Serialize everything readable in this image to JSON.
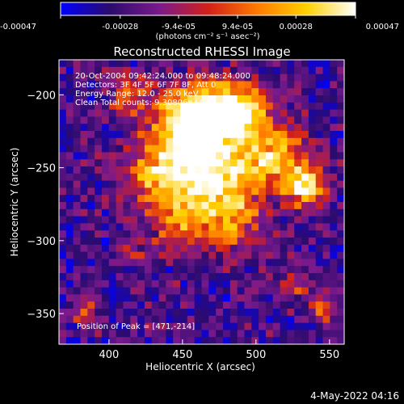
{
  "chart_data": {
    "type": "heatmap",
    "title": "Reconstructed RHESSI Image",
    "xlabel": "Heliocentric X (arcsec)",
    "ylabel": "Heliocentric Y (arcsec)",
    "xlim": [
      366,
      560
    ],
    "ylim": [
      -371,
      -176
    ],
    "x_ticks": [
      400,
      450,
      500,
      550
    ],
    "y_ticks": [
      -200,
      -250,
      -300,
      -350
    ],
    "colorbar": {
      "range": [
        -0.00047,
        0.00047
      ],
      "tick_values": [
        -0.00047,
        -0.00028,
        -9.4e-05,
        9.4e-05,
        0.00028,
        0.00047
      ],
      "tick_labels": [
        "-0.00047",
        "-0.00028",
        "-9.4e-05",
        "9.4e-05",
        "0.00028",
        "0.00047"
      ],
      "unit_label": "(photons cm⁻² s⁻¹ asec⁻²)",
      "colors": [
        "#0000ff",
        "#2c0b6e",
        "#7a1a8c",
        "#d1201a",
        "#ff7a00",
        "#ffd000",
        "#ffffff"
      ]
    },
    "grid_cols": 40,
    "grid_rows": 40,
    "sources": [
      {
        "x": 471,
        "y": -214,
        "sigma": 14,
        "amp": 1.0
      },
      {
        "x": 452,
        "y": -218,
        "sigma": 15,
        "amp": 0.85
      },
      {
        "x": 492,
        "y": -210,
        "sigma": 12,
        "amp": 0.8
      },
      {
        "x": 437,
        "y": -255,
        "sigma": 18,
        "amp": 0.75
      },
      {
        "x": 470,
        "y": -252,
        "sigma": 18,
        "amp": 0.8
      },
      {
        "x": 510,
        "y": -242,
        "sigma": 16,
        "amp": 0.7
      },
      {
        "x": 534,
        "y": -262,
        "sigma": 10,
        "amp": 0.85
      },
      {
        "x": 482,
        "y": -285,
        "sigma": 16,
        "amp": 0.55
      },
      {
        "x": 450,
        "y": -292,
        "sigma": 12,
        "amp": 0.5
      },
      {
        "x": 415,
        "y": -200,
        "sigma": 10,
        "amp": 0.45
      },
      {
        "x": 384,
        "y": -347,
        "sigma": 7,
        "amp": 0.45
      },
      {
        "x": 548,
        "y": -349,
        "sigma": 7,
        "amp": 0.4
      },
      {
        "x": 528,
        "y": -330,
        "sigma": 8,
        "amp": 0.35
      },
      {
        "x": 416,
        "y": -306,
        "sigma": 6,
        "amp": 0.3
      }
    ]
  },
  "header_lines": [
    "20-Oct-2004 09:42:24.000 to 09:48:24.000",
    "Detectors: 3F 4F 5F 6F 7F 8F, Att 0",
    "Energy Range: 12.0 - 25.0 keV",
    "Clean    Total counts: 9.30806e+04"
  ],
  "peak_label": "Position of Peak = [471,-214]",
  "timestamp": "4-May-2022 04:16"
}
